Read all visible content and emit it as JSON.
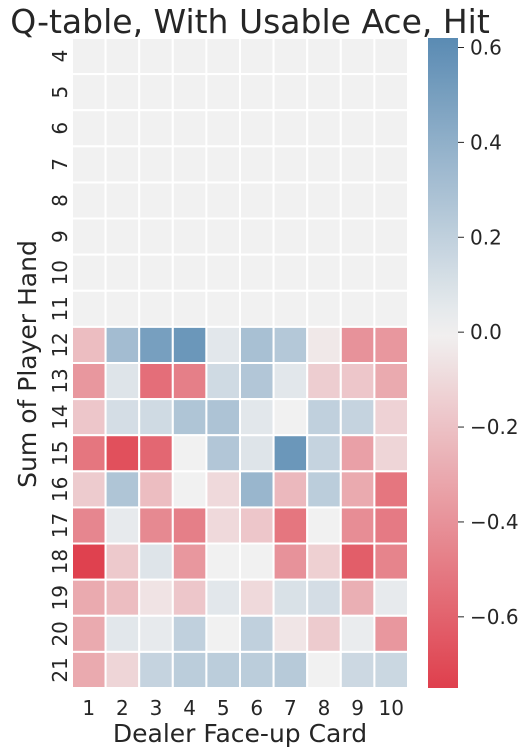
{
  "chart_data": {
    "type": "heatmap",
    "title": "Q-table, With Usable Ace, Hit",
    "xlabel": "Dealer Face-up Card",
    "ylabel": "Sum of Player Hand",
    "x_categories": [
      "1",
      "2",
      "3",
      "4",
      "5",
      "6",
      "7",
      "8",
      "9",
      "10"
    ],
    "y_categories": [
      "4",
      "5",
      "6",
      "7",
      "8",
      "9",
      "10",
      "11",
      "12",
      "13",
      "14",
      "15",
      "16",
      "17",
      "18",
      "19",
      "20",
      "21"
    ],
    "values": [
      [
        0,
        0,
        0,
        0,
        0,
        0,
        0,
        0,
        0,
        0
      ],
      [
        0,
        0,
        0,
        0,
        0,
        0,
        0,
        0,
        0,
        0
      ],
      [
        0,
        0,
        0,
        0,
        0,
        0,
        0,
        0,
        0,
        0
      ],
      [
        0,
        0,
        0,
        0,
        0,
        0,
        0,
        0,
        0,
        0
      ],
      [
        0,
        0,
        0,
        0,
        0,
        0,
        0,
        0,
        0,
        0
      ],
      [
        0,
        0,
        0,
        0,
        0,
        0,
        0,
        0,
        0,
        0
      ],
      [
        0,
        0,
        0,
        0,
        0,
        0,
        0,
        0,
        0,
        0
      ],
      [
        0,
        0,
        0,
        0,
        0,
        0,
        0,
        0,
        0,
        0
      ],
      [
        -0.22,
        0.32,
        0.5,
        0.55,
        0.06,
        0.3,
        0.25,
        -0.04,
        -0.4,
        -0.38
      ],
      [
        -0.38,
        0.08,
        -0.55,
        -0.48,
        0.14,
        0.26,
        0.06,
        -0.15,
        -0.18,
        -0.3
      ],
      [
        -0.18,
        0.12,
        0.14,
        0.27,
        0.28,
        0.06,
        0.0,
        0.2,
        0.18,
        -0.13
      ],
      [
        -0.52,
        -0.68,
        -0.58,
        0.0,
        0.26,
        0.08,
        0.55,
        0.18,
        -0.34,
        -0.12
      ],
      [
        -0.16,
        0.27,
        -0.22,
        0.0,
        -0.1,
        0.36,
        -0.24,
        0.22,
        -0.3,
        -0.52
      ],
      [
        -0.45,
        0.04,
        -0.44,
        -0.48,
        -0.1,
        -0.18,
        -0.52,
        0.0,
        -0.42,
        -0.5
      ],
      [
        -0.74,
        -0.17,
        0.08,
        -0.38,
        0.0,
        0.0,
        -0.4,
        -0.14,
        -0.62,
        -0.46
      ],
      [
        -0.3,
        -0.22,
        -0.06,
        -0.18,
        0.06,
        -0.1,
        0.1,
        0.12,
        -0.28,
        0.04
      ],
      [
        -0.3,
        0.06,
        0.04,
        0.2,
        0.0,
        0.2,
        -0.05,
        -0.16,
        0.03,
        -0.38
      ],
      [
        -0.3,
        -0.12,
        0.18,
        0.22,
        0.22,
        0.22,
        0.24,
        0.0,
        0.15,
        0.16
      ]
    ],
    "vmin": -0.75,
    "vmax": 0.62,
    "colorbar": {
      "ticks": [
        -0.6,
        -0.4,
        -0.2,
        0.0,
        0.2,
        0.4,
        0.6
      ],
      "tick_labels": [
        "−0.6",
        "−0.4",
        "−0.2",
        "0.0",
        "0.2",
        "0.4",
        "0.6"
      ]
    },
    "colors": {
      "negative": "#df3f4d",
      "center": "#f1f1f1",
      "positive": "#5a8bb3",
      "gridline": "#ffffff",
      "text": "#262626"
    }
  }
}
